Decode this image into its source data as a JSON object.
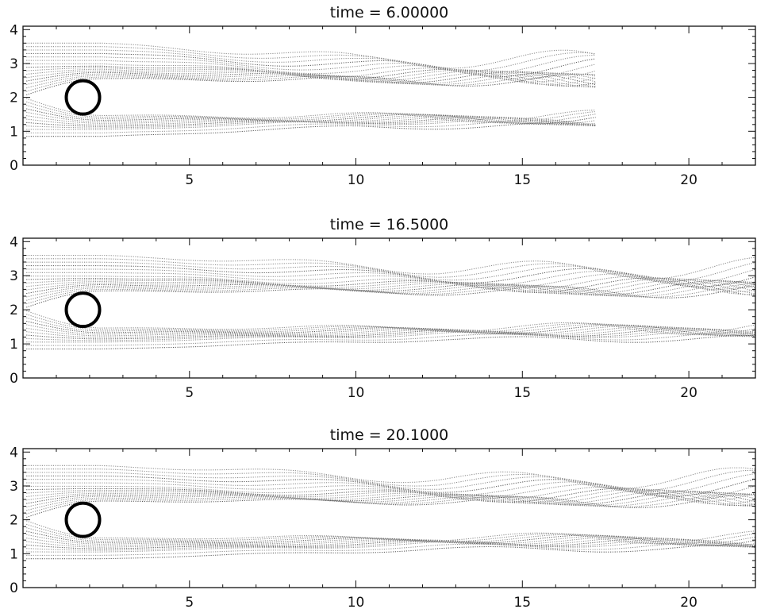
{
  "chart_data": [
    {
      "type": "scatter",
      "title": "time  =  6.00000",
      "xlim": [
        0,
        22
      ],
      "ylim": [
        0,
        4.1
      ],
      "x_ticks": [
        5,
        10,
        15,
        20
      ],
      "y_ticks": [
        0,
        1,
        2,
        3,
        4
      ],
      "cylinder": {
        "center_x": 1.8,
        "center_y": 2.0,
        "radius": 0.5
      },
      "streak_front_x": 17.2,
      "grid": false,
      "legend": "none"
    },
    {
      "type": "scatter",
      "title": "time  =  16.5000",
      "xlim": [
        0,
        22
      ],
      "ylim": [
        0,
        4.1
      ],
      "x_ticks": [
        5,
        10,
        15,
        20
      ],
      "y_ticks": [
        0,
        1,
        2,
        3,
        4
      ],
      "cylinder": {
        "center_x": 1.8,
        "center_y": 2.0,
        "radius": 0.5
      },
      "streak_front_x": 22,
      "grid": false,
      "legend": "none"
    },
    {
      "type": "scatter",
      "title": "time  =  20.1000",
      "xlim": [
        0,
        22
      ],
      "ylim": [
        0,
        4.1
      ],
      "x_ticks": [
        5,
        10,
        15,
        20
      ],
      "y_ticks": [
        0,
        1,
        2,
        3,
        4
      ],
      "cylinder": {
        "center_x": 1.8,
        "center_y": 2.0,
        "radius": 0.5
      },
      "streak_front_x": 22,
      "grid": false,
      "legend": "none"
    }
  ],
  "colors": {
    "streaklines": "#8c8c8c",
    "cylinder": "#000000",
    "axes": "#111111"
  }
}
